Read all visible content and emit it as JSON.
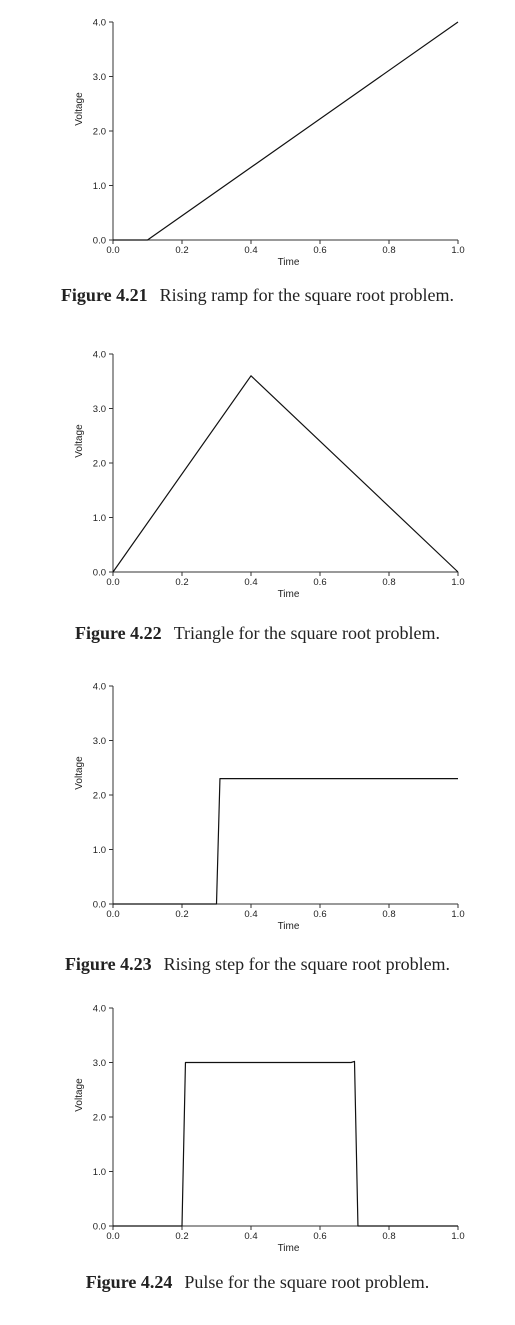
{
  "chart_data": [
    {
      "type": "line",
      "figure_number": "Figure 4.21",
      "caption": "Rising ramp for the square root problem.",
      "xlabel": "Time",
      "ylabel": "Voltage",
      "xlim": [
        0.0,
        1.0
      ],
      "ylim": [
        0.0,
        4.0
      ],
      "xticks": [
        "0.0",
        "0.2",
        "0.4",
        "0.6",
        "0.8",
        "1.0"
      ],
      "yticks": [
        "0.0",
        "1.0",
        "2.0",
        "3.0",
        "4.0"
      ],
      "x": [
        0.0,
        0.1,
        1.0
      ],
      "y": [
        0.0,
        0.0,
        4.0
      ]
    },
    {
      "type": "line",
      "figure_number": "Figure 4.22",
      "caption": "Triangle for the square root problem.",
      "xlabel": "Time",
      "ylabel": "Voltage",
      "xlim": [
        0.0,
        1.0
      ],
      "ylim": [
        0.0,
        4.0
      ],
      "xticks": [
        "0.0",
        "0.2",
        "0.4",
        "0.6",
        "0.8",
        "1.0"
      ],
      "yticks": [
        "0.0",
        "1.0",
        "2.0",
        "3.0",
        "4.0"
      ],
      "x": [
        0.0,
        0.4,
        1.0
      ],
      "y": [
        0.0,
        3.6,
        0.0
      ]
    },
    {
      "type": "line",
      "figure_number": "Figure 4.23",
      "caption": "Rising step for the square root problem.",
      "xlabel": "Time",
      "ylabel": "Voltage",
      "xlim": [
        0.0,
        1.0
      ],
      "ylim": [
        0.0,
        4.0
      ],
      "xticks": [
        "0.0",
        "0.2",
        "0.4",
        "0.6",
        "0.8",
        "1.0"
      ],
      "yticks": [
        "0.0",
        "1.0",
        "2.0",
        "3.0",
        "4.0"
      ],
      "x": [
        0.0,
        0.3,
        0.31,
        1.0
      ],
      "y": [
        0.0,
        0.0,
        2.3,
        2.3
      ]
    },
    {
      "type": "line",
      "figure_number": "Figure 4.24",
      "caption": "Pulse for the square root problem.",
      "xlabel": "Time",
      "ylabel": "Voltage",
      "xlim": [
        0.0,
        1.0
      ],
      "ylim": [
        0.0,
        4.0
      ],
      "xticks": [
        "0.0",
        "0.2",
        "0.4",
        "0.6",
        "0.8",
        "1.0"
      ],
      "yticks": [
        "0.0",
        "1.0",
        "2.0",
        "3.0",
        "4.0"
      ],
      "x": [
        0.0,
        0.2,
        0.21,
        0.69,
        0.7,
        0.71,
        1.0
      ],
      "y": [
        0.0,
        0.0,
        3.0,
        3.0,
        3.02,
        0.0,
        0.0
      ]
    }
  ]
}
